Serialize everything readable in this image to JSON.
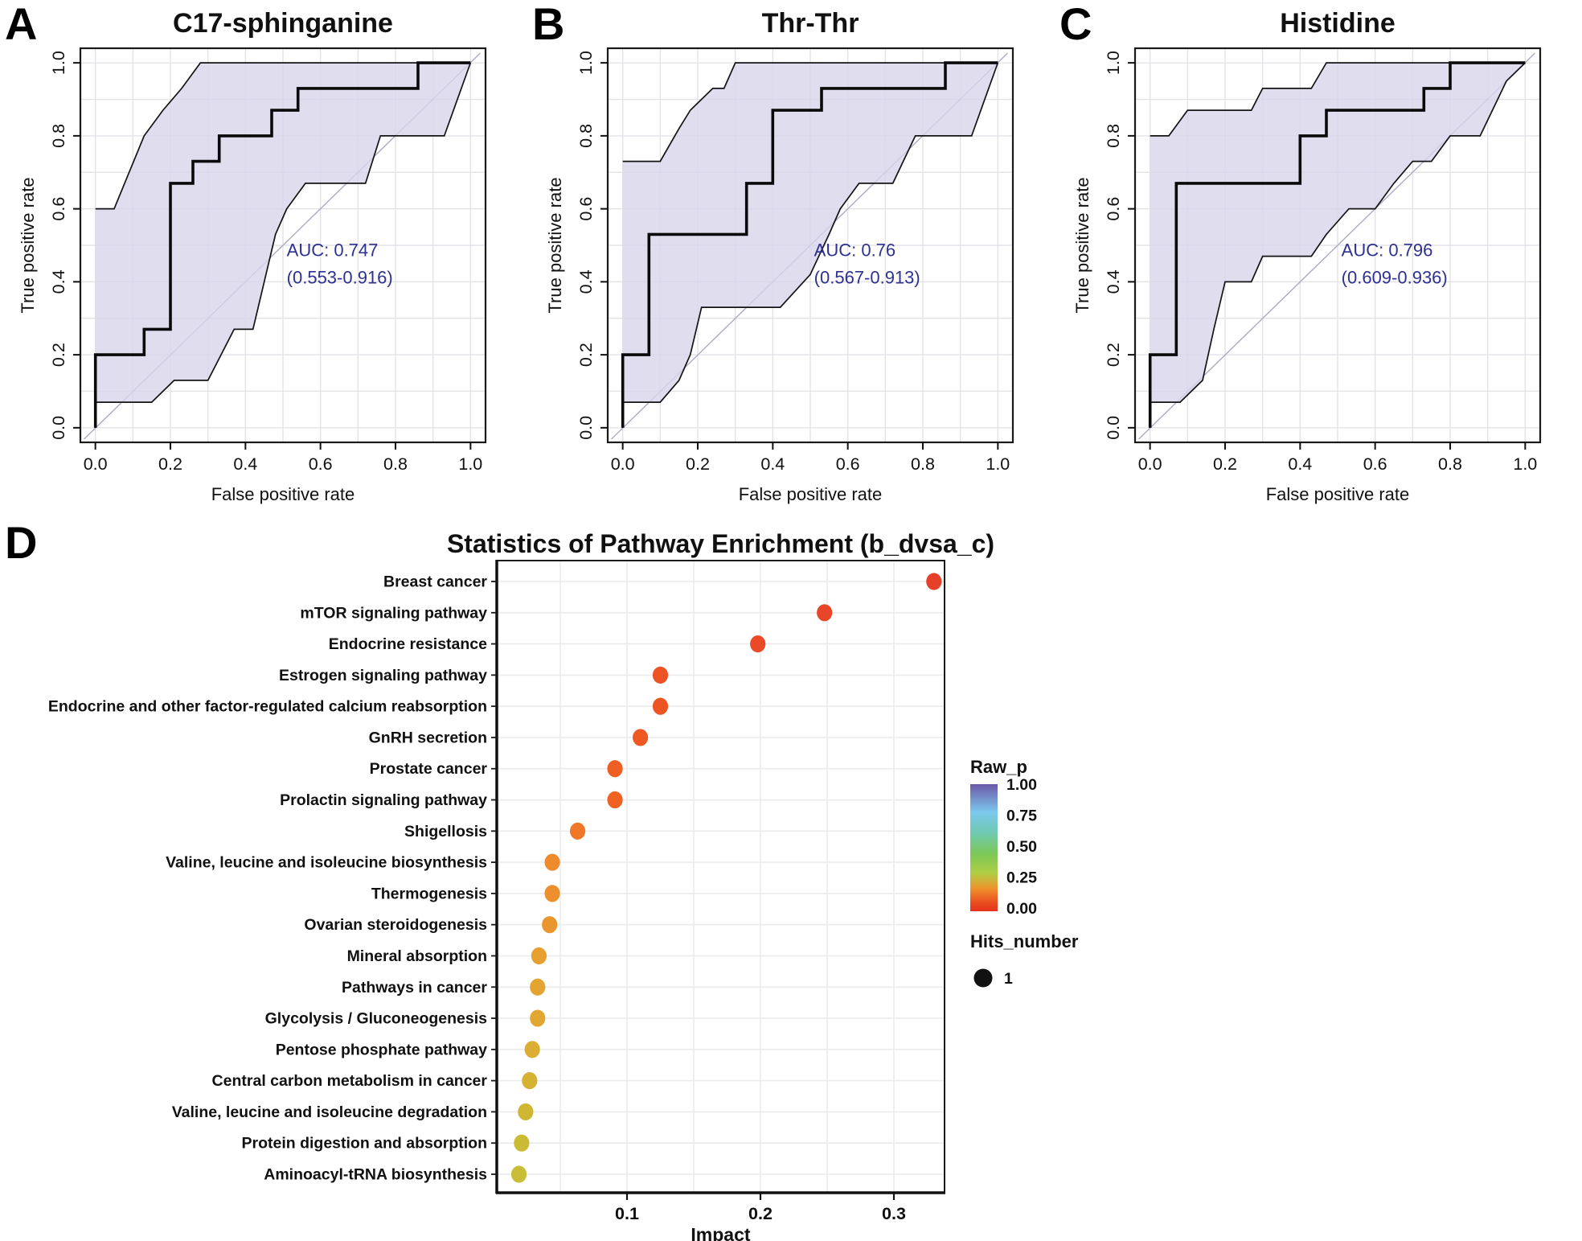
{
  "chart_data": [
    {
      "type": "line",
      "panel_letter": "A",
      "title": "C17-sphinganine",
      "xlabel": "False positive rate",
      "ylabel": "True positive rate",
      "xlim": [
        0,
        1
      ],
      "ylim": [
        0,
        1
      ],
      "ticks": [
        {
          "v": 0.0,
          "label": "0.0"
        },
        {
          "v": 0.2,
          "label": "0.2"
        },
        {
          "v": 0.4,
          "label": "0.4"
        },
        {
          "v": 0.6,
          "label": "0.6"
        },
        {
          "v": 0.8,
          "label": "0.8"
        },
        {
          "v": 1.0,
          "label": "1.0"
        }
      ],
      "auc_line1": "AUC: 0.747",
      "auc_line2": "(0.553-0.916)",
      "auc_color": "#2E3192",
      "auc_x": 0.51,
      "auc_y1": 0.47,
      "auc_y2": 0.395,
      "band_color": "#D8D5EB",
      "roc_curve": [
        [
          0,
          0
        ],
        [
          0,
          0.2
        ],
        [
          0.13,
          0.2
        ],
        [
          0.13,
          0.27
        ],
        [
          0.2,
          0.27
        ],
        [
          0.2,
          0.67
        ],
        [
          0.26,
          0.67
        ],
        [
          0.26,
          0.73
        ],
        [
          0.33,
          0.73
        ],
        [
          0.33,
          0.8
        ],
        [
          0.47,
          0.8
        ],
        [
          0.47,
          0.87
        ],
        [
          0.54,
          0.87
        ],
        [
          0.54,
          0.93
        ],
        [
          0.86,
          0.93
        ],
        [
          0.86,
          1
        ],
        [
          1,
          1
        ]
      ],
      "ci_upper": [
        [
          0,
          0.6
        ],
        [
          0.05,
          0.6
        ],
        [
          0.13,
          0.8
        ],
        [
          0.18,
          0.87
        ],
        [
          0.23,
          0.93
        ],
        [
          0.28,
          1
        ],
        [
          1,
          1
        ]
      ],
      "ci_lower": [
        [
          0,
          0.07
        ],
        [
          0.15,
          0.07
        ],
        [
          0.21,
          0.13
        ],
        [
          0.3,
          0.13
        ],
        [
          0.37,
          0.27
        ],
        [
          0.42,
          0.27
        ],
        [
          0.48,
          0.53
        ],
        [
          0.51,
          0.6
        ],
        [
          0.56,
          0.67
        ],
        [
          0.72,
          0.67
        ],
        [
          0.76,
          0.8
        ],
        [
          0.93,
          0.8
        ],
        [
          1,
          1
        ]
      ]
    },
    {
      "type": "line",
      "panel_letter": "B",
      "title": "Thr-Thr",
      "xlabel": "False positive rate",
      "ylabel": "True positive rate",
      "xlim": [
        0,
        1
      ],
      "ylim": [
        0,
        1
      ],
      "ticks": [
        {
          "v": 0.0,
          "label": "0.0"
        },
        {
          "v": 0.2,
          "label": "0.2"
        },
        {
          "v": 0.4,
          "label": "0.4"
        },
        {
          "v": 0.6,
          "label": "0.6"
        },
        {
          "v": 0.8,
          "label": "0.8"
        },
        {
          "v": 1.0,
          "label": "1.0"
        }
      ],
      "auc_line1": "AUC: 0.76",
      "auc_line2": "(0.567-0.913)",
      "auc_color": "#2E3192",
      "auc_x": 0.51,
      "auc_y1": 0.47,
      "auc_y2": 0.395,
      "band_color": "#D8D5EB",
      "roc_curve": [
        [
          0,
          0
        ],
        [
          0,
          0.2
        ],
        [
          0.07,
          0.2
        ],
        [
          0.07,
          0.53
        ],
        [
          0.33,
          0.53
        ],
        [
          0.33,
          0.67
        ],
        [
          0.4,
          0.67
        ],
        [
          0.4,
          0.87
        ],
        [
          0.53,
          0.87
        ],
        [
          0.53,
          0.93
        ],
        [
          0.86,
          0.93
        ],
        [
          0.86,
          1
        ],
        [
          1,
          1
        ]
      ],
      "ci_upper": [
        [
          0,
          0.73
        ],
        [
          0.1,
          0.73
        ],
        [
          0.15,
          0.82
        ],
        [
          0.18,
          0.87
        ],
        [
          0.21,
          0.9
        ],
        [
          0.24,
          0.93
        ],
        [
          0.27,
          0.93
        ],
        [
          0.3,
          1
        ],
        [
          1,
          1
        ]
      ],
      "ci_lower": [
        [
          0,
          0.07
        ],
        [
          0.1,
          0.07
        ],
        [
          0.15,
          0.13
        ],
        [
          0.18,
          0.2
        ],
        [
          0.21,
          0.33
        ],
        [
          0.42,
          0.33
        ],
        [
          0.5,
          0.42
        ],
        [
          0.55,
          0.53
        ],
        [
          0.58,
          0.6
        ],
        [
          0.63,
          0.67
        ],
        [
          0.72,
          0.67
        ],
        [
          0.78,
          0.8
        ],
        [
          0.93,
          0.8
        ],
        [
          1,
          1
        ]
      ]
    },
    {
      "type": "line",
      "panel_letter": "C",
      "title": "Histidine",
      "xlabel": "False positive rate",
      "ylabel": "True positive rate",
      "xlim": [
        0,
        1
      ],
      "ylim": [
        0,
        1
      ],
      "ticks": [
        {
          "v": 0.0,
          "label": "0.0"
        },
        {
          "v": 0.2,
          "label": "0.2"
        },
        {
          "v": 0.4,
          "label": "0.4"
        },
        {
          "v": 0.6,
          "label": "0.6"
        },
        {
          "v": 0.8,
          "label": "0.8"
        },
        {
          "v": 1.0,
          "label": "1.0"
        }
      ],
      "auc_line1": "AUC: 0.796",
      "auc_line2": "(0.609-0.936)",
      "auc_color": "#2E3192",
      "auc_x": 0.51,
      "auc_y1": 0.47,
      "auc_y2": 0.395,
      "band_color": "#D8D5EB",
      "roc_curve": [
        [
          0,
          0
        ],
        [
          0,
          0.2
        ],
        [
          0.07,
          0.2
        ],
        [
          0.07,
          0.67
        ],
        [
          0.4,
          0.67
        ],
        [
          0.4,
          0.8
        ],
        [
          0.47,
          0.8
        ],
        [
          0.47,
          0.87
        ],
        [
          0.73,
          0.87
        ],
        [
          0.73,
          0.93
        ],
        [
          0.8,
          0.93
        ],
        [
          0.8,
          1
        ],
        [
          1,
          1
        ]
      ],
      "ci_upper": [
        [
          0,
          0.8
        ],
        [
          0.05,
          0.8
        ],
        [
          0.1,
          0.87
        ],
        [
          0.27,
          0.87
        ],
        [
          0.3,
          0.93
        ],
        [
          0.43,
          0.93
        ],
        [
          0.47,
          1
        ],
        [
          1,
          1
        ]
      ],
      "ci_lower": [
        [
          0,
          0.07
        ],
        [
          0.08,
          0.07
        ],
        [
          0.14,
          0.13
        ],
        [
          0.17,
          0.27
        ],
        [
          0.2,
          0.4
        ],
        [
          0.27,
          0.4
        ],
        [
          0.3,
          0.47
        ],
        [
          0.43,
          0.47
        ],
        [
          0.47,
          0.53
        ],
        [
          0.53,
          0.6
        ],
        [
          0.6,
          0.6
        ],
        [
          0.65,
          0.67
        ],
        [
          0.7,
          0.73
        ],
        [
          0.75,
          0.73
        ],
        [
          0.8,
          0.8
        ],
        [
          0.88,
          0.8
        ],
        [
          0.95,
          0.95
        ],
        [
          1,
          1
        ]
      ]
    },
    {
      "type": "scatter",
      "panel_letter": "D",
      "title": "Statistics of Pathway Enrichment (b_dvsa_c)",
      "xlabel": "Impact",
      "xticks": [
        {
          "v": 0.1,
          "label": "0.1"
        },
        {
          "v": 0.2,
          "label": "0.2"
        },
        {
          "v": 0.3,
          "label": "0.3"
        }
      ],
      "minor_grid": [
        0.05,
        0.1,
        0.15,
        0.2,
        0.25,
        0.3
      ],
      "xlim": [
        0.002,
        0.338
      ],
      "pathways": [
        {
          "label": "Breast cancer",
          "impact": 0.33,
          "hits": 1,
          "color": "#E6402A"
        },
        {
          "label": "mTOR signaling pathway",
          "impact": 0.248,
          "hits": 1,
          "color": "#E84529"
        },
        {
          "label": "Endocrine resistance",
          "impact": 0.198,
          "hits": 1,
          "color": "#EA4A27"
        },
        {
          "label": "Estrogen signaling pathway",
          "impact": 0.125,
          "hits": 1,
          "color": "#ED5224"
        },
        {
          "label": "Endocrine and other factor-regulated calcium reabsorption",
          "impact": 0.125,
          "hits": 1,
          "color": "#ED5424"
        },
        {
          "label": "GnRH secretion",
          "impact": 0.11,
          "hits": 1,
          "color": "#EE5823"
        },
        {
          "label": "Prostate cancer",
          "impact": 0.091,
          "hits": 1,
          "color": "#EF5F23"
        },
        {
          "label": "Prolactin signaling pathway",
          "impact": 0.091,
          "hits": 1,
          "color": "#EF6224"
        },
        {
          "label": "Shigellosis",
          "impact": 0.063,
          "hits": 1,
          "color": "#F07728"
        },
        {
          "label": "Valine, leucine and isoleucine biosynthesis",
          "impact": 0.044,
          "hits": 1,
          "color": "#EE8B2C"
        },
        {
          "label": "Thermogenesis",
          "impact": 0.044,
          "hits": 1,
          "color": "#EC8F2D"
        },
        {
          "label": "Ovarian steroidogenesis",
          "impact": 0.042,
          "hits": 1,
          "color": "#EA952E"
        },
        {
          "label": "Mineral absorption",
          "impact": 0.034,
          "hits": 1,
          "color": "#E79F30"
        },
        {
          "label": "Pathways in cancer",
          "impact": 0.033,
          "hits": 1,
          "color": "#E4A431"
        },
        {
          "label": "Glycolysis / Gluconeogenesis",
          "impact": 0.033,
          "hits": 1,
          "color": "#E2A731"
        },
        {
          "label": "Pentose phosphate pathway",
          "impact": 0.029,
          "hits": 1,
          "color": "#DCAD33"
        },
        {
          "label": "Central carbon metabolism in cancer",
          "impact": 0.027,
          "hits": 1,
          "color": "#D6B233"
        },
        {
          "label": "Valine, leucine and isoleucine degradation",
          "impact": 0.024,
          "hits": 1,
          "color": "#CFB734"
        },
        {
          "label": "Protein digestion and absorption",
          "impact": 0.021,
          "hits": 1,
          "color": "#CBBA35"
        },
        {
          "label": "Aminoacyl-tRNA biosynthesis",
          "impact": 0.019,
          "hits": 1,
          "color": "#C7BD36"
        }
      ],
      "legend": {
        "raw_p": {
          "title": "Raw_p",
          "labels": [
            "1.00",
            "0.75",
            "0.50",
            "0.25",
            "0.00"
          ],
          "gradient": [
            {
              "offset": 0.0,
              "color": "#6B58A8"
            },
            {
              "offset": 0.22,
              "color": "#7CC9EE"
            },
            {
              "offset": 0.38,
              "color": "#6FC9B2"
            },
            {
              "offset": 0.55,
              "color": "#7CC856"
            },
            {
              "offset": 0.7,
              "color": "#AFCE45"
            },
            {
              "offset": 0.82,
              "color": "#F0932C"
            },
            {
              "offset": 0.93,
              "color": "#EA4E20"
            },
            {
              "offset": 1.0,
              "color": "#E5311D"
            }
          ]
        },
        "hits": {
          "title": "Hits_number",
          "items": [
            {
              "label": "1",
              "size": 1
            }
          ]
        }
      }
    }
  ]
}
